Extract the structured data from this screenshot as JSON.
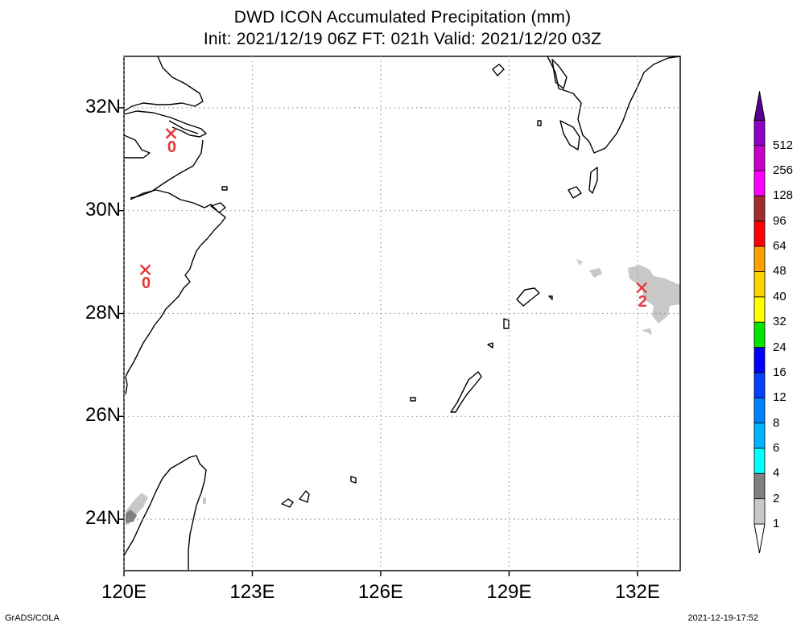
{
  "header": {
    "title": "DWD ICON Accumulated Precipitation (mm)",
    "subtitle": "Init: 2021/12/19 06Z  FT: 021h  Valid: 2021/12/20 03Z"
  },
  "map": {
    "lon_range": [
      120,
      133
    ],
    "lat_range": [
      23,
      33
    ],
    "x_ticks": [
      {
        "lon": 120,
        "label": "120E"
      },
      {
        "lon": 123,
        "label": "123E"
      },
      {
        "lon": 126,
        "label": "126E"
      },
      {
        "lon": 129,
        "label": "129E"
      },
      {
        "lon": 132,
        "label": "132E"
      }
    ],
    "y_ticks": [
      {
        "lat": 32,
        "label": "32N"
      },
      {
        "lat": 30,
        "label": "30N"
      },
      {
        "lat": 28,
        "label": "28N"
      },
      {
        "lat": 26,
        "label": "26N"
      },
      {
        "lat": 24,
        "label": "24N"
      }
    ],
    "grid": "dotted",
    "stations": [
      {
        "lon": 121.1,
        "lat": 31.5,
        "value": "0"
      },
      {
        "lon": 120.5,
        "lat": 28.85,
        "value": "0"
      },
      {
        "lon": 132.1,
        "lat": 28.5,
        "value": "2"
      }
    ],
    "station_color": "#e53838"
  },
  "colorbar": {
    "levels": [
      {
        "label": "1",
        "color": "#c8c8c8"
      },
      {
        "label": "2",
        "color": "#808080"
      },
      {
        "label": "4",
        "color": "#00ffff"
      },
      {
        "label": "6",
        "color": "#00b4ff"
      },
      {
        "label": "8",
        "color": "#0082ff"
      },
      {
        "label": "12",
        "color": "#0041ff"
      },
      {
        "label": "16",
        "color": "#0000ff"
      },
      {
        "label": "24",
        "color": "#00e600"
      },
      {
        "label": "32",
        "color": "#ffff00"
      },
      {
        "label": "40",
        "color": "#ffd200"
      },
      {
        "label": "48",
        "color": "#ffa000"
      },
      {
        "label": "64",
        "color": "#ff0000"
      },
      {
        "label": "96",
        "color": "#a52a2a"
      },
      {
        "label": "128",
        "color": "#ff00ff"
      },
      {
        "label": "256",
        "color": "#c800c8"
      },
      {
        "label": "512",
        "color": "#8c00c8"
      }
    ],
    "colors": [
      "#c8c8c8",
      "#808080",
      "#00ffff",
      "#00b4ff",
      "#0082ff",
      "#0041ff",
      "#0000ff",
      "#00e600",
      "#ffff00",
      "#ffd200",
      "#ffa000",
      "#ff0000",
      "#a52a2a",
      "#ff00ff",
      "#c800c8",
      "#8c00c8",
      "#5a0096"
    ]
  },
  "footer": {
    "left": "GrADS/COLA",
    "right": "2021-12-19-17:52"
  }
}
